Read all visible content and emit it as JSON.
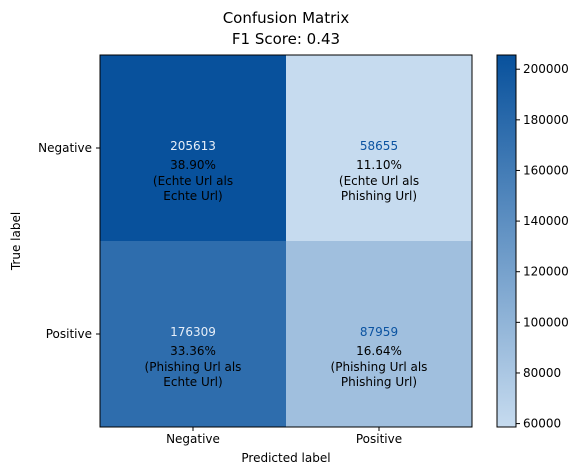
{
  "chart_data": {
    "type": "heatmap",
    "title": "Confusion Matrix",
    "subtitle": "F1 Score: 0.43",
    "xlabel": "Predicted label",
    "ylabel": "True label",
    "x_categories": [
      "Negative",
      "Positive"
    ],
    "y_categories": [
      "Negative",
      "Positive"
    ],
    "values": [
      [
        205613,
        58655
      ],
      [
        176309,
        87959
      ]
    ],
    "percent_labels": [
      [
        "38.90%",
        "11.10%"
      ],
      [
        "33.36%",
        "16.64%"
      ]
    ],
    "cell_labels": [
      [
        [
          "(Echte Url als",
          "Echte Url)"
        ],
        [
          "(Echte Url als",
          "Phishing Url)"
        ]
      ],
      [
        [
          "(Phishing Url als",
          "Echte Url)"
        ],
        [
          "(Phishing Url als",
          "Phishing Url)"
        ]
      ]
    ],
    "colorbar": {
      "min": 58655,
      "max": 205613,
      "ticks": [
        60000,
        80000,
        100000,
        120000,
        140000,
        160000,
        180000,
        200000
      ],
      "colormap": "Blues",
      "color_low": "#c6dbef",
      "color_high": "#08519c"
    },
    "grid": false
  }
}
